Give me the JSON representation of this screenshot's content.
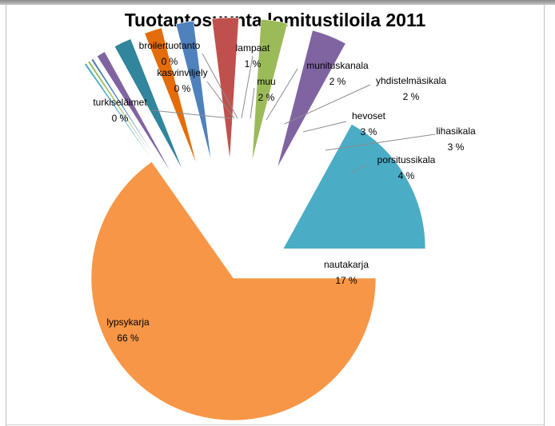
{
  "chart_data": {
    "type": "pie",
    "title": "Tuotantosuunta lomitustiloila 2011",
    "slices": [
      {
        "label": "lypsykarja",
        "value": 66,
        "display": "66 %",
        "color": "#f79646"
      },
      {
        "label": "turkiseläimet",
        "value": 0,
        "display": "0 %",
        "color": "#4bacc6"
      },
      {
        "label": "kasvinviljely",
        "value": 0,
        "display": "0 %",
        "color": "#9bbb59"
      },
      {
        "label": "broilertuotanto",
        "value": 0,
        "display": "0 %",
        "color": "#4f81bd"
      },
      {
        "label": "lampaat",
        "value": 1,
        "display": "1 %",
        "color": "#8064a2"
      },
      {
        "label": "muu",
        "value": 2,
        "display": "2 %",
        "color": "#31859c"
      },
      {
        "label": "munituskanala",
        "value": 2,
        "display": "2 %",
        "color": "#e46c0a"
      },
      {
        "label": "yhdistelmäsikala",
        "value": 2,
        "display": "2 %",
        "color": "#4f81bd"
      },
      {
        "label": "hevoset",
        "value": 3,
        "display": "3 %",
        "color": "#c0504d"
      },
      {
        "label": "lihasikala",
        "value": 3,
        "display": "3 %",
        "color": "#9bbb59"
      },
      {
        "label": "porsitussikala",
        "value": 4,
        "display": "4 %",
        "color": "#8064a2"
      },
      {
        "label": "nautakarja",
        "value": 17,
        "display": "17 %",
        "color": "#4bacc6"
      }
    ],
    "legend": "none",
    "data_labels": "category and percentage"
  }
}
